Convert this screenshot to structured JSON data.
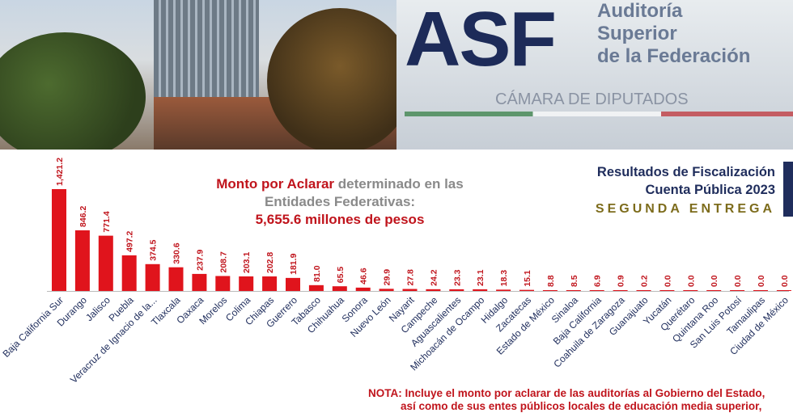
{
  "banner": {
    "logo": "ASF",
    "logo_text_1": "Auditoría",
    "logo_text_2": "Superior",
    "logo_text_3": "de la Federación",
    "camara": "CÁMARA DE DIPUTADOS"
  },
  "title": {
    "part1": "Monto por Aclarar",
    "part2": " determinado en las",
    "part3": "Entidades Federativas:",
    "total": "5,655.6 millones de pesos"
  },
  "results": {
    "line1": "Resultados de Fiscalización",
    "line2": "Cuenta Pública 2023",
    "entrega": "SEGUNDA ENTREGA"
  },
  "nota": "NOTA: Incluye el monto por aclarar de las auditorías al Gobierno del Estado,",
  "nota_line2": "así como de sus entes públicos locales de educación media superior,",
  "colors": {
    "bar": "#e0141c",
    "label": "#c0141c",
    "navy": "#1f2d5c",
    "gold": "#7d6c1c"
  },
  "chart_data": {
    "type": "bar",
    "categories": [
      "Baja California Sur",
      "Durango",
      "Jalisco",
      "Puebla",
      "Veracruz de Ignacio de la...",
      "Tlaxcala",
      "Oaxaca",
      "Morelos",
      "Colima",
      "Chiapas",
      "Guerrero",
      "Tabasco",
      "Chihuahua",
      "Sonora",
      "Nuevo León",
      "Nayarit",
      "Campeche",
      "Aguascalientes",
      "Michoacán de Ocampo",
      "Hidalgo",
      "Zacatecas",
      "Estado de México",
      "Sinaloa",
      "Baja California",
      "Coahuila de Zaragoza",
      "Guanajuato",
      "Yucatán",
      "Querétaro",
      "Quintana Roo",
      "San Luis Potosí",
      "Tamaulipas",
      "Ciudad de México"
    ],
    "values": [
      1421.2,
      846.2,
      771.4,
      497.2,
      374.5,
      330.6,
      237.9,
      208.7,
      203.1,
      202.8,
      181.9,
      81.0,
      65.5,
      46.6,
      29.9,
      27.8,
      24.2,
      23.3,
      23.1,
      18.3,
      15.1,
      8.8,
      8.5,
      6.9,
      0.9,
      0.2,
      0.0,
      0.0,
      0.0,
      0.0,
      0.0,
      0.0
    ],
    "value_labels": [
      "1,421.2",
      "846.2",
      "771.4",
      "497.2",
      "374.5",
      "330.6",
      "237.9",
      "208.7",
      "203.1",
      "202.8",
      "181.9",
      "81.0",
      "65.5",
      "46.6",
      "29.9",
      "27.8",
      "24.2",
      "23.3",
      "23.1",
      "18.3",
      "15.1",
      "8.8",
      "8.5",
      "6.9",
      "0.9",
      "0.2",
      "0.0",
      "0.0",
      "0.0",
      "0.0",
      "0.0",
      "0.0"
    ],
    "ylim": [
      0,
      1421.2
    ]
  }
}
